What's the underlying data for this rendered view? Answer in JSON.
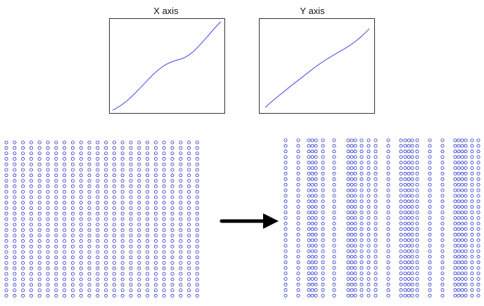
{
  "x_panel": {
    "title": "X axis"
  },
  "y_panel": {
    "title": "Y axis"
  },
  "colors": {
    "curve": "#5a64e8",
    "dots": "#2630c8",
    "arrow": "#000000",
    "frame": "#333333"
  },
  "before_grid": {
    "columns": 24,
    "rows": 29
  },
  "after_grid": {
    "rows": 29
  }
}
